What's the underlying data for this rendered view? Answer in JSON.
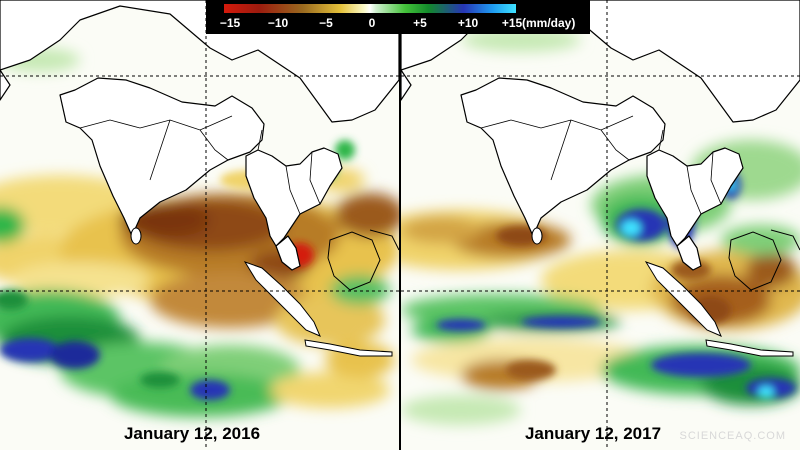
{
  "colorbar": {
    "labels": [
      "−15",
      "−10",
      "−5",
      "0",
      "+5",
      "+10",
      "+15"
    ],
    "values": [
      -15,
      -10,
      -5,
      0,
      5,
      10,
      15
    ],
    "units": "(mm/day)",
    "colors": {
      "strong_deficit": "#d41a0c",
      "deficit_brown": "#9a5a1c",
      "weak_deficit": "#e8c84a",
      "neutral": "#ffffff",
      "surplus_green": "#2fb64a",
      "strong_surplus_blue": "#2735b5",
      "max_surplus_cyan": "#3fe2ff"
    }
  },
  "panels": [
    {
      "id": "left",
      "date_label": "January 12, 2016"
    },
    {
      "id": "right",
      "date_label": "January 12, 2017"
    }
  ],
  "watermark": "SCIENCEAQ.COM"
}
